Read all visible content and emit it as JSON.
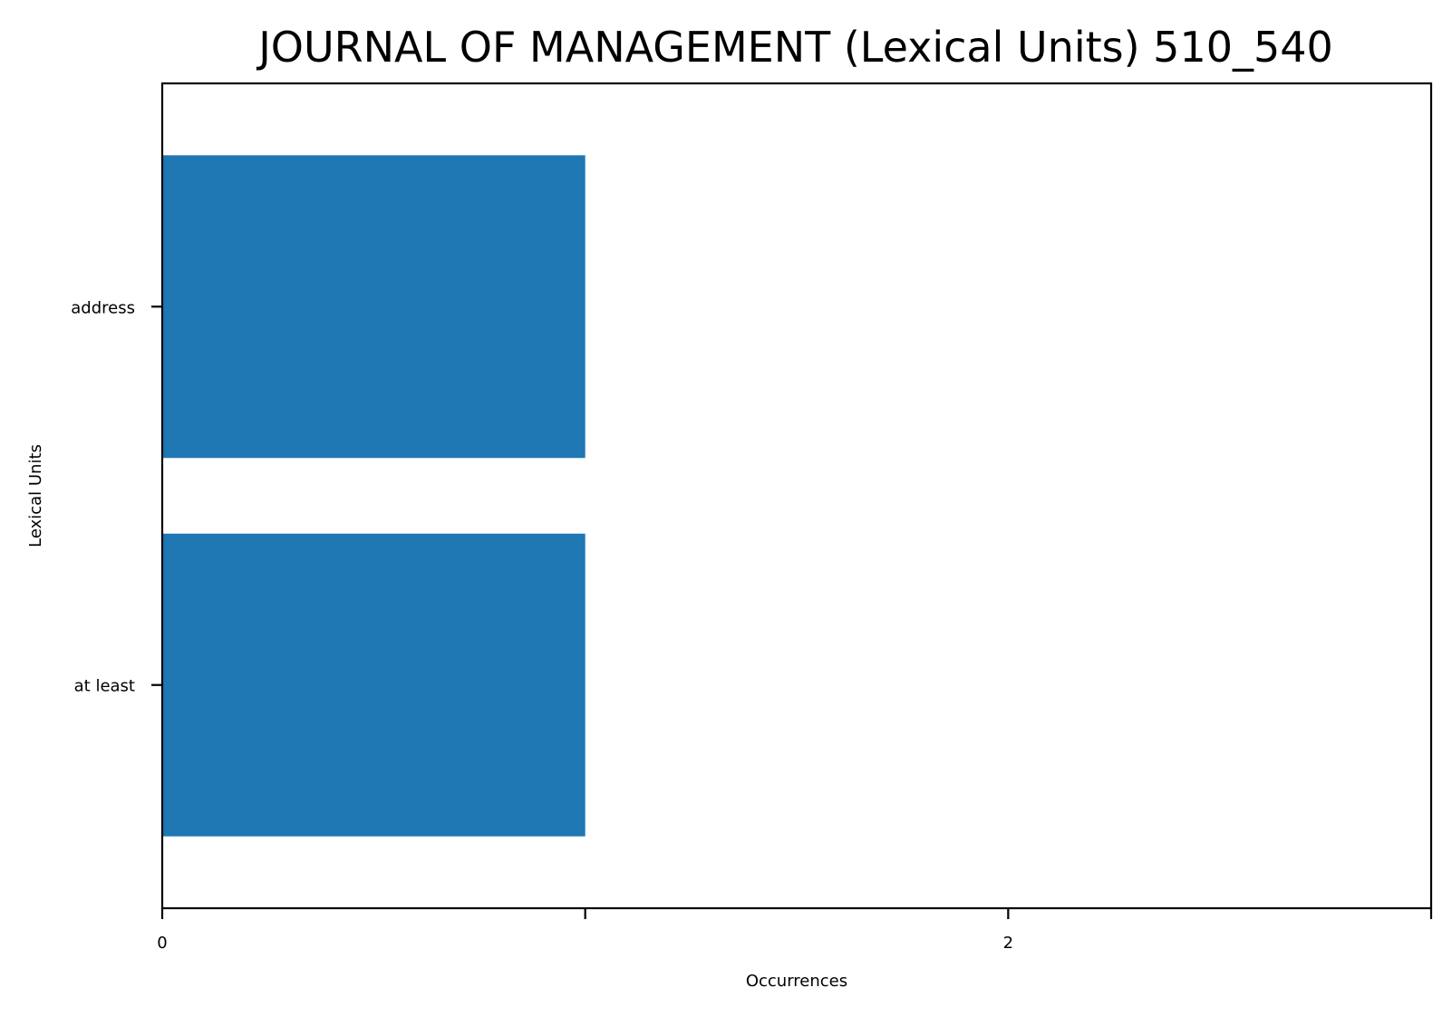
{
  "chart_data": {
    "type": "bar",
    "orientation": "horizontal",
    "title": "JOURNAL OF MANAGEMENT (Lexical Units) 510_540",
    "xlabel": "Occurrences",
    "ylabel": "Lexical Units",
    "categories": [
      "address",
      "at least"
    ],
    "values": [
      1,
      1
    ],
    "xlim": [
      0,
      3
    ],
    "x_ticks": [
      0,
      1,
      2,
      3
    ],
    "x_tick_labels": [
      "0",
      "",
      "2",
      ""
    ],
    "grid": false,
    "legend": "none",
    "bar_color": "#1f77b4"
  }
}
